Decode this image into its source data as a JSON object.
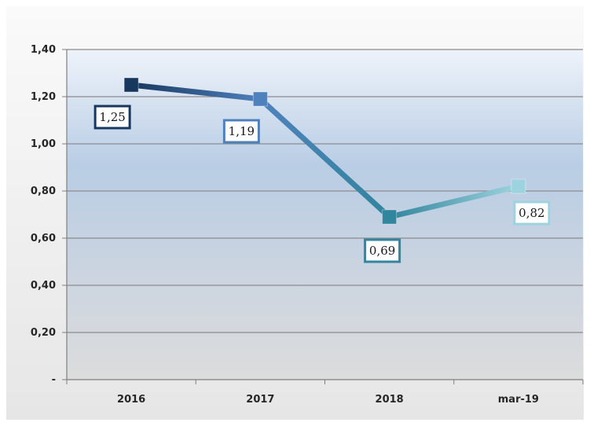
{
  "chart_data": {
    "type": "line",
    "categories": [
      "2016",
      "2017",
      "2018",
      "mar-19"
    ],
    "values": [
      1.25,
      1.19,
      0.69,
      0.82
    ],
    "value_labels": [
      "1,25",
      "1,19",
      "0,69",
      "0,82"
    ],
    "y_tick_labels": [
      "-",
      "0,20",
      "0,40",
      "0,60",
      "0,80",
      "1,00",
      "1,20",
      "1,40"
    ],
    "y_tick_values": [
      0,
      0.2,
      0.4,
      0.6,
      0.8,
      1.0,
      1.2,
      1.4
    ],
    "ylim": [
      0,
      1.4
    ],
    "grid": true,
    "legend": "none",
    "point_colors": [
      "#17375e",
      "#4f81bd",
      "#31859c",
      "#9dd3df"
    ],
    "label_positions": [
      "below-left",
      "below-left",
      "below",
      "below-right"
    ],
    "plot_background": [
      "#b9cde5",
      "#dcdcdc"
    ]
  }
}
